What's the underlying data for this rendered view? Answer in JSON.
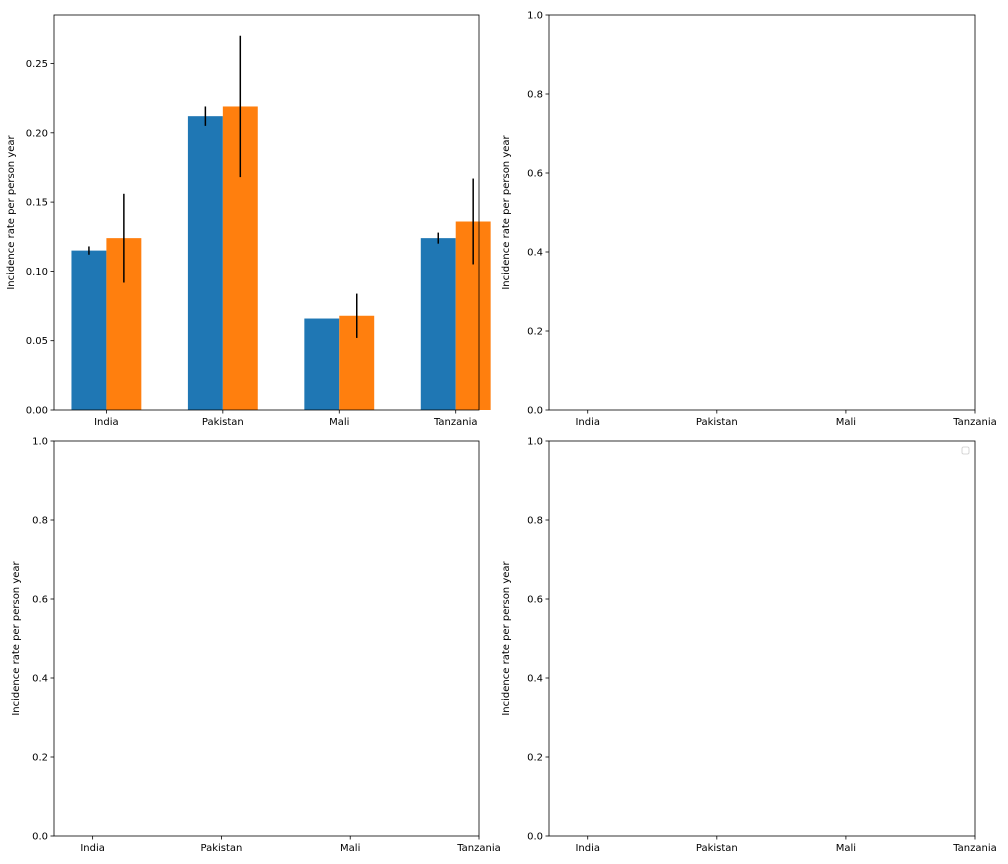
{
  "chart_data": [
    {
      "type": "bar",
      "categories": [
        "India",
        "Pakistan",
        "Mali",
        "Tanzania"
      ],
      "ylabel": "Incidence rate per person year",
      "ylim": [
        0,
        0.285
      ],
      "yticks": [
        "0.00",
        "0.05",
        "0.10",
        "0.15",
        "0.20",
        "0.25"
      ],
      "ytick_values": [
        0,
        0.05,
        0.1,
        0.15,
        0.2,
        0.25
      ],
      "category_positions": [
        0,
        1,
        2,
        3
      ],
      "xlim": [
        -0.45,
        3.2
      ],
      "series": [
        {
          "color": "#1f77b4",
          "values": [
            0.115,
            0.212,
            0.066,
            0.124
          ],
          "errors": [
            0.003,
            0.007,
            0.0,
            0.004
          ]
        },
        {
          "color": "#ff7f0e",
          "values": [
            0.124,
            0.219,
            0.068,
            0.136
          ],
          "errors": [
            0.032,
            0.051,
            0.016,
            0.031
          ]
        }
      ],
      "grid": false,
      "legend": "none"
    },
    {
      "type": "bar",
      "categories": [
        "India",
        "Pakistan",
        "Mali",
        "Tanzania"
      ],
      "ylabel": "Incidence rate per person year",
      "ylim": [
        0,
        1
      ],
      "yticks": [
        "0.0",
        "0.2",
        "0.4",
        "0.6",
        "0.8",
        "1.0"
      ],
      "ytick_values": [
        0,
        0.2,
        0.4,
        0.6,
        0.8,
        1.0
      ],
      "category_positions": [
        0,
        1,
        2,
        3
      ],
      "xlim": [
        -0.3,
        3
      ],
      "series": [],
      "grid": false,
      "legend": "none"
    },
    {
      "type": "bar",
      "categories": [
        "India",
        "Pakistan",
        "Mali",
        "Tanzania"
      ],
      "ylabel": "Incidence rate per person year",
      "ylim": [
        0,
        1
      ],
      "yticks": [
        "0.0",
        "0.2",
        "0.4",
        "0.6",
        "0.8",
        "1.0"
      ],
      "ytick_values": [
        0,
        0.2,
        0.4,
        0.6,
        0.8,
        1.0
      ],
      "category_positions": [
        0,
        1,
        2,
        3
      ],
      "xlim": [
        -0.3,
        3
      ],
      "series": [],
      "grid": false,
      "legend": "none"
    },
    {
      "type": "bar",
      "categories": [
        "India",
        "Pakistan",
        "Mali",
        "Tanzania"
      ],
      "ylabel": "Incidence rate per person year",
      "ylim": [
        0,
        1
      ],
      "yticks": [
        "0.0",
        "0.2",
        "0.4",
        "0.6",
        "0.8",
        "1.0"
      ],
      "ytick_values": [
        0,
        0.2,
        0.4,
        0.6,
        0.8,
        1.0
      ],
      "category_positions": [
        0,
        1,
        2,
        3
      ],
      "xlim": [
        -0.3,
        3
      ],
      "series": [],
      "grid": false,
      "legend": "top-right (empty)"
    }
  ]
}
